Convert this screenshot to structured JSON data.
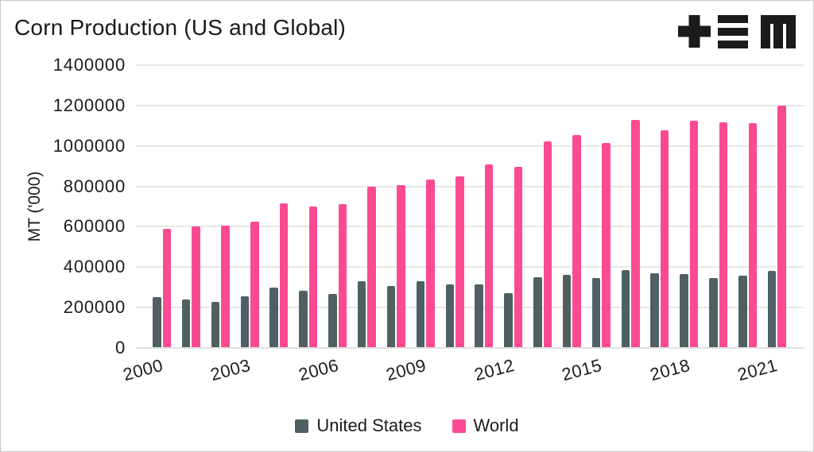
{
  "title": "Corn Production (US and Global)",
  "logo": {
    "name": "tem-logo",
    "glyphs": [
      "plus",
      "triple-bar",
      "m"
    ],
    "color": "#1b1b1b"
  },
  "colors": {
    "united_states": "#506062",
    "world": "#fb4a92",
    "gridline": "#e7e7e7",
    "text": "#1a1a1a",
    "background": "#ffffff"
  },
  "chart_data": {
    "type": "bar",
    "title": "Corn Production (US and Global)",
    "ylabel": "MT ('000)",
    "xlabel": "",
    "ylim": [
      0,
      1400000
    ],
    "grid": true,
    "legend_position": "bottom",
    "x": [
      2000,
      2001,
      2002,
      2003,
      2004,
      2005,
      2006,
      2007,
      2008,
      2009,
      2010,
      2011,
      2012,
      2013,
      2014,
      2015,
      2016,
      2017,
      2018,
      2019,
      2020,
      2021
    ],
    "xticks": [
      "2000",
      "2003",
      "2006",
      "2009",
      "2012",
      "2015",
      "2018",
      "2021"
    ],
    "yticks": [
      "0",
      "200000",
      "400000",
      "600000",
      "800000",
      "1000000",
      "1200000",
      "1400000"
    ],
    "series": [
      {
        "name": "United States",
        "color": "#506062",
        "values": [
          252000,
          241000,
          227000,
          256000,
          300000,
          282000,
          267000,
          331000,
          306000,
          332000,
          316000,
          313000,
          273000,
          351000,
          361000,
          345000,
          384000,
          371000,
          364000,
          346000,
          358000,
          383000
        ]
      },
      {
        "name": "World",
        "color": "#fb4a92",
        "values": [
          590000,
          602000,
          605000,
          627000,
          717000,
          699000,
          713000,
          799000,
          808000,
          834000,
          849000,
          910000,
          897000,
          1024000,
          1055000,
          1014000,
          1128000,
          1078000,
          1126000,
          1116000,
          1114000,
          1199000
        ]
      }
    ]
  },
  "legend": {
    "items": [
      {
        "label": "United States"
      },
      {
        "label": "World"
      }
    ]
  }
}
